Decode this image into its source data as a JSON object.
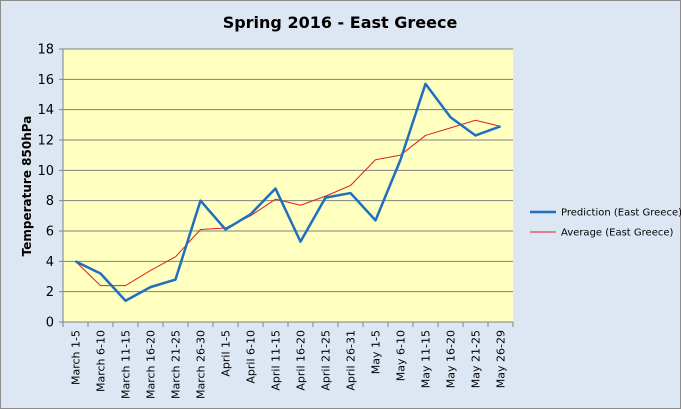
{
  "chart_data": {
    "type": "line",
    "title": "Spring 2016 - East Greece",
    "xlabel": "",
    "ylabel": "Temperature 850hPa",
    "ylim": [
      0,
      18
    ],
    "yticks": [
      0,
      2,
      4,
      6,
      8,
      10,
      12,
      14,
      16,
      18
    ],
    "grid": true,
    "legend_position": "right",
    "plot_background": "#ffffc0",
    "chart_background": "#dde7f3",
    "categories": [
      "March 1-5",
      "March 6-10",
      "March 11-15",
      "March 16-20",
      "March 21-25",
      "March 26-30",
      "April 1-5",
      "April 6-10",
      "April 11-15",
      "April 16-20",
      "April 21-25",
      "April 26-31",
      "May 1-5",
      "May 6-10",
      "May 11-15",
      "May 16-20",
      "May 21-25",
      "May 26-29"
    ],
    "series": [
      {
        "name": "Prediction (East Greece)",
        "color": "#1f6fbf",
        "values": [
          4.0,
          3.2,
          1.4,
          2.3,
          2.8,
          8.0,
          6.1,
          7.1,
          8.8,
          5.3,
          8.2,
          8.5,
          6.7,
          10.7,
          15.7,
          13.5,
          12.3,
          12.9
        ]
      },
      {
        "name": "Average (East Greece)",
        "color": "#e02020",
        "values": [
          4.0,
          2.4,
          2.4,
          3.4,
          4.3,
          6.1,
          6.2,
          7.0,
          8.1,
          7.7,
          8.3,
          9.0,
          10.7,
          11.0,
          12.3,
          12.8,
          13.3,
          12.9
        ]
      }
    ]
  }
}
